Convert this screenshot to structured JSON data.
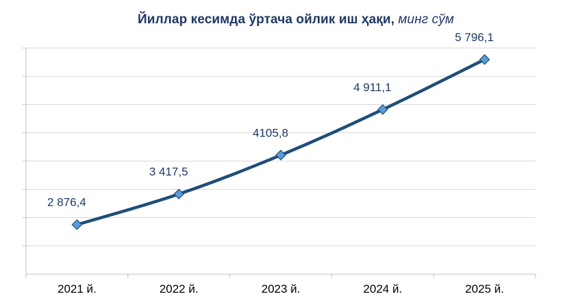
{
  "title": {
    "main": "Йиллар кесимда ўртача ойлик иш ҳақи,",
    "unit": "минг сўм"
  },
  "chart_data": {
    "type": "line",
    "title": "Йиллар кесимда ўртача ойлик иш ҳақи, минг сўм",
    "categories": [
      "2021 й.",
      "2022 й.",
      "2023 й.",
      "2024 й.",
      "2025 й."
    ],
    "series": [
      {
        "values": [
          2876.4,
          3417.5,
          4105.8,
          4911.1,
          5796.1
        ],
        "labels": [
          "2 876,4",
          "3 417,5",
          "4105,8",
          "4 911,1",
          "5 796,1"
        ]
      }
    ],
    "ylim": [
      2000,
      6000
    ],
    "grid": true,
    "legend": "none",
    "colors": {
      "line": "#1f4e79",
      "marker": "#5b9bd5",
      "title": "#1f3864"
    }
  }
}
